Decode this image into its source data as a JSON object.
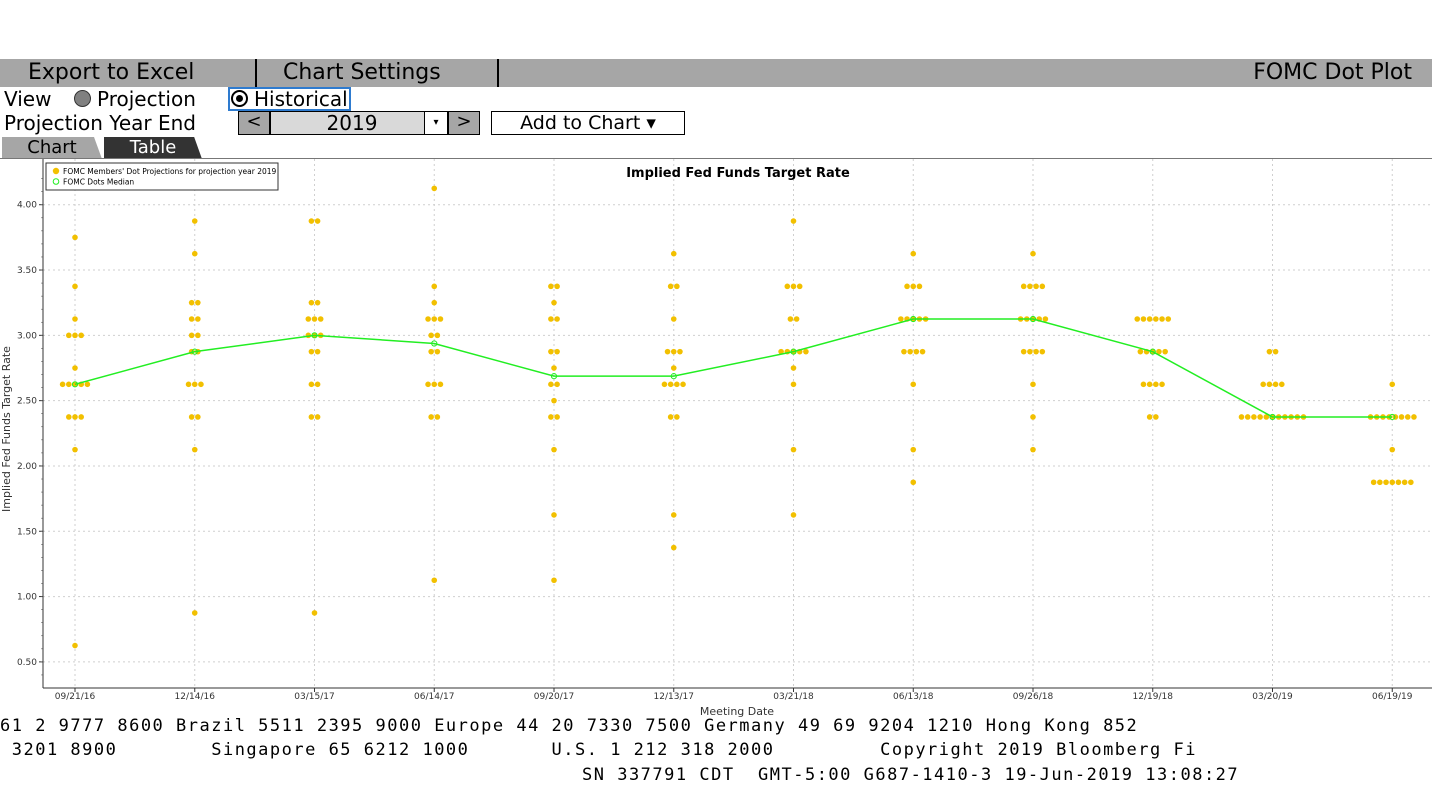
{
  "toolbar": {
    "export_label": "Export to Excel",
    "settings_label": "Chart Settings",
    "title": "FOMC Dot Plot"
  },
  "view": {
    "label": "View",
    "options": [
      "Projection",
      "Historical"
    ],
    "selected": "Historical"
  },
  "projection": {
    "label": "Projection Year End",
    "prev": "<",
    "year": "2019",
    "dropdown": "▾",
    "next": ">",
    "add_label": "Add to Chart ▾"
  },
  "tabs": {
    "chart": "Chart",
    "table": "Table"
  },
  "colors": {
    "dots": "#f2c000",
    "median": "#22ee22",
    "toolbar": "#a6a6a6"
  },
  "chart_data": {
    "type": "scatter",
    "title": "Implied Fed Funds Target Rate",
    "xlabel": "Meeting Date",
    "ylabel": "Implied Fed Funds Target Rate",
    "ylim": [
      0.3,
      4.35
    ],
    "yticks": [
      "0.50",
      "1.00",
      "1.50",
      "2.00",
      "2.50",
      "3.00",
      "3.50",
      "4.00"
    ],
    "categories": [
      "09/21/16",
      "12/14/16",
      "03/15/17",
      "06/14/17",
      "09/20/17",
      "12/13/17",
      "03/21/18",
      "06/13/18",
      "09/26/18",
      "12/19/18",
      "03/20/19",
      "06/19/19"
    ],
    "grid": true,
    "legend_position": "top-left",
    "series": [
      {
        "name": "FOMC Members' Dot Projections for projection year 2019",
        "dots": [
          [
            0.625,
            2.125,
            2.375,
            2.375,
            2.375,
            2.625,
            2.625,
            2.625,
            2.625,
            2.625,
            2.75,
            3.0,
            3.0,
            3.0,
            3.125,
            3.375,
            3.75
          ],
          [
            0.875,
            2.125,
            2.375,
            2.375,
            2.625,
            2.625,
            2.625,
            2.875,
            2.875,
            3.0,
            3.0,
            3.125,
            3.125,
            3.25,
            3.25,
            3.625,
            3.875
          ],
          [
            0.875,
            2.375,
            2.375,
            2.625,
            2.625,
            2.875,
            2.875,
            3.0,
            3.0,
            3.0,
            3.125,
            3.125,
            3.125,
            3.25,
            3.25,
            3.875,
            3.875
          ],
          [
            1.125,
            2.375,
            2.375,
            2.625,
            2.625,
            2.625,
            2.875,
            2.875,
            3.0,
            3.0,
            3.125,
            3.125,
            3.125,
            3.25,
            3.375,
            4.125
          ],
          [
            1.125,
            1.625,
            2.125,
            2.375,
            2.375,
            2.5,
            2.625,
            2.625,
            2.75,
            2.875,
            2.875,
            3.125,
            3.125,
            3.25,
            3.375,
            3.375
          ],
          [
            1.375,
            1.625,
            2.375,
            2.375,
            2.625,
            2.625,
            2.625,
            2.625,
            2.75,
            2.875,
            2.875,
            2.875,
            3.125,
            3.375,
            3.375,
            3.625
          ],
          [
            1.625,
            2.125,
            2.625,
            2.75,
            2.875,
            2.875,
            2.875,
            2.875,
            2.875,
            3.125,
            3.125,
            3.375,
            3.375,
            3.375,
            3.875
          ],
          [
            1.875,
            2.125,
            2.625,
            2.875,
            2.875,
            2.875,
            2.875,
            3.125,
            3.125,
            3.125,
            3.125,
            3.125,
            3.375,
            3.375,
            3.375,
            3.625
          ],
          [
            2.125,
            2.375,
            2.625,
            2.875,
            2.875,
            2.875,
            2.875,
            3.125,
            3.125,
            3.125,
            3.125,
            3.125,
            3.375,
            3.375,
            3.375,
            3.375,
            3.625
          ],
          [
            2.375,
            2.375,
            2.625,
            2.625,
            2.625,
            2.625,
            2.875,
            2.875,
            2.875,
            2.875,
            2.875,
            3.125,
            3.125,
            3.125,
            3.125,
            3.125,
            3.125
          ],
          [
            2.375,
            2.375,
            2.375,
            2.375,
            2.375,
            2.375,
            2.375,
            2.375,
            2.375,
            2.375,
            2.375,
            2.625,
            2.625,
            2.625,
            2.625,
            2.875,
            2.875
          ],
          [
            1.875,
            1.875,
            1.875,
            1.875,
            1.875,
            1.875,
            1.875,
            2.125,
            2.375,
            2.375,
            2.375,
            2.375,
            2.375,
            2.375,
            2.375,
            2.375,
            2.625
          ]
        ]
      },
      {
        "name": "FOMC Dots Median",
        "values": [
          2.625,
          2.875,
          3.0,
          2.9375,
          2.6875,
          2.6875,
          2.875,
          3.125,
          3.125,
          2.875,
          2.375,
          2.375
        ]
      }
    ]
  },
  "footer": {
    "line1": "61 2 9777 8600 Brazil 5511 2395 9000 Europe 44 20 7330 7500 Germany 49 69 9204 1210 Hong Kong 852",
    "line2": " 3201 8900        Singapore 65 6212 1000       U.S. 1 212 318 2000         Copyright 2019 Bloomberg Fi",
    "line3": "SN 337791 CDT  GMT-5:00 G687-1410-3 19-Jun-2019 13:08:27"
  }
}
